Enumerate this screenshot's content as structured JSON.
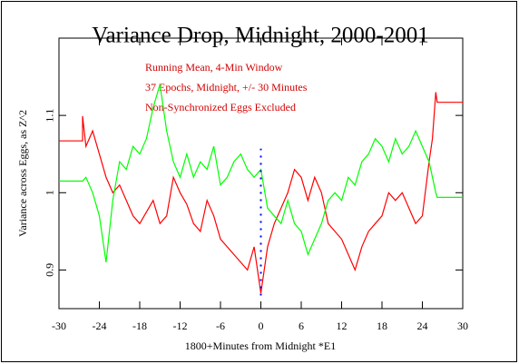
{
  "chart_data": {
    "type": "line",
    "title": "Variance Drop, Midnight, 2000-2001",
    "xlabel": "1800+Minutes from Midnight      *E1",
    "ylabel": "Variance across Eggs, as Z^2",
    "annotations": [
      "Running Mean, 4-Min Window",
      "37 Epochs, Midnight, +/- 30 Minutes",
      "Non-Synchronized Eggs Excluded"
    ],
    "annotation_color": "#d00000",
    "xlim": [
      -30,
      30
    ],
    "xticks": [
      -30,
      -24,
      -18,
      -12,
      -6,
      0,
      6,
      12,
      18,
      24,
      30
    ],
    "ylim": [
      0.85,
      1.2
    ],
    "yticks": [
      0.9,
      1,
      1.1
    ],
    "marker_line": {
      "x": 0,
      "y": [
        0.867,
        1.057
      ],
      "color": "#0000ff"
    },
    "series": [
      {
        "color": "#ff0000",
        "x": [
          -30,
          -26.5,
          -26.5,
          -26,
          -25,
          -24,
          -23,
          -22,
          -21,
          -20,
          -19,
          -18,
          -17,
          -16,
          -15,
          -14,
          -13,
          -12,
          -11,
          -10,
          -9,
          -8,
          -7,
          -6,
          -5,
          -4,
          -3,
          -2,
          -1,
          0,
          1,
          2,
          3,
          4,
          5,
          6,
          7,
          8,
          9,
          10,
          11,
          12,
          13,
          14,
          15,
          16,
          17,
          18,
          19,
          20,
          21,
          22,
          23,
          24,
          25,
          25.5,
          26,
          26.2,
          30
        ],
        "values": [
          1.067,
          1.067,
          1.099,
          1.06,
          1.08,
          1.05,
          1.02,
          1.0,
          1.01,
          0.99,
          0.97,
          0.96,
          0.975,
          0.99,
          0.96,
          0.97,
          1.02,
          1.0,
          0.985,
          0.96,
          0.95,
          0.99,
          0.97,
          0.94,
          0.93,
          0.92,
          0.91,
          0.9,
          0.93,
          0.87,
          0.93,
          0.96,
          0.98,
          1.0,
          1.03,
          1.02,
          0.99,
          1.02,
          1.0,
          0.96,
          0.95,
          0.94,
          0.92,
          0.9,
          0.93,
          0.95,
          0.96,
          0.97,
          1.0,
          0.99,
          1.0,
          0.98,
          0.96,
          0.97,
          1.04,
          1.07,
          1.13,
          1.117,
          1.117
        ]
      },
      {
        "color": "#00ff00",
        "x": [
          -30,
          -26.5,
          -26,
          -25,
          -24,
          -23,
          -22,
          -21,
          -20,
          -19,
          -18,
          -17,
          -16,
          -15,
          -14,
          -13,
          -12,
          -11,
          -10,
          -9,
          -8,
          -7,
          -6,
          -5,
          -4,
          -3,
          -2,
          -1,
          0,
          1,
          2,
          3,
          4,
          5,
          6,
          7,
          8,
          9,
          10,
          11,
          12,
          13,
          14,
          15,
          16,
          17,
          18,
          19,
          20,
          21,
          22,
          23,
          24,
          25,
          26,
          26.2,
          30
        ],
        "values": [
          1.015,
          1.015,
          1.02,
          1.0,
          0.97,
          0.91,
          0.99,
          1.04,
          1.03,
          1.06,
          1.05,
          1.07,
          1.11,
          1.14,
          1.08,
          1.04,
          1.02,
          1.05,
          1.02,
          1.04,
          1.03,
          1.06,
          1.01,
          1.02,
          1.04,
          1.05,
          1.03,
          1.02,
          1.03,
          0.98,
          0.97,
          0.96,
          0.99,
          0.96,
          0.95,
          0.92,
          0.94,
          0.96,
          0.99,
          1.0,
          0.99,
          1.02,
          1.01,
          1.04,
          1.05,
          1.07,
          1.06,
          1.04,
          1.07,
          1.05,
          1.06,
          1.08,
          1.06,
          1.04,
          1.0,
          0.994,
          0.994
        ]
      }
    ]
  }
}
